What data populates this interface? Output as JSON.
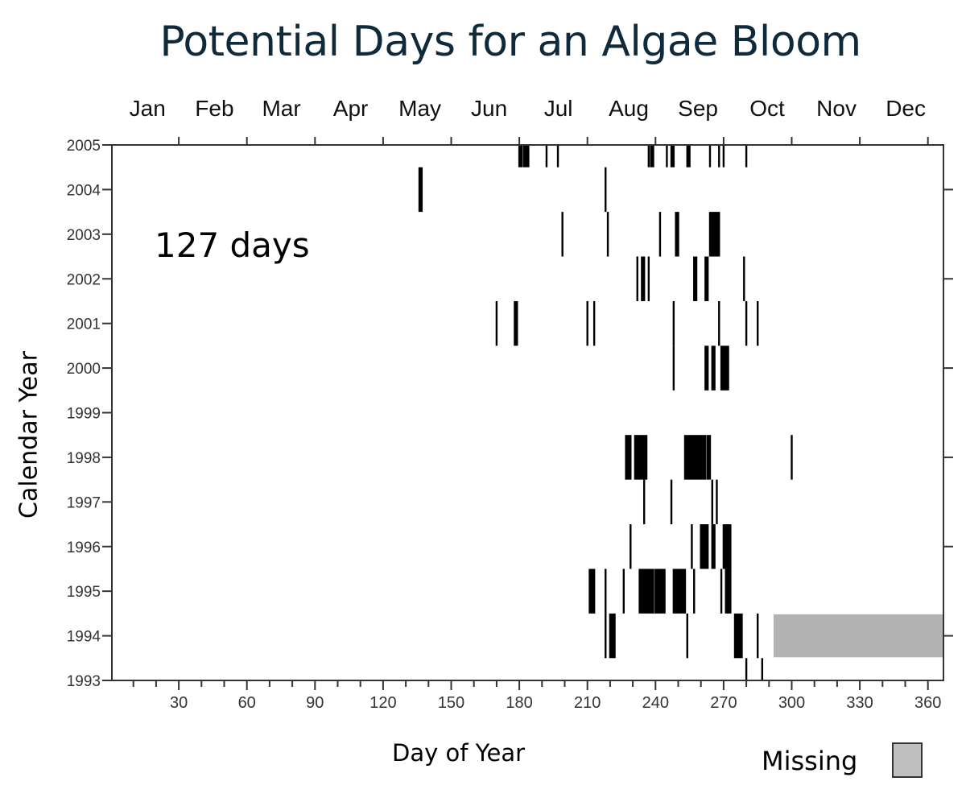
{
  "title": "Potential Days for an Algae Bloom",
  "annotation": "127 days",
  "legend": {
    "label": "Missing",
    "color": "#c0c0c0"
  },
  "chart_data": {
    "type": "event-raster",
    "title": "Potential Days for an Algae Bloom",
    "xlabel": "Day of Year",
    "ylabel": "Calendar Year",
    "xlim": [
      0,
      366
    ],
    "ylim": [
      1993,
      2005
    ],
    "x_ticks": [
      30,
      60,
      90,
      120,
      150,
      180,
      210,
      240,
      270,
      300,
      330,
      360
    ],
    "x_minor_step": 10,
    "month_labels": [
      "Jan",
      "Feb",
      "Mar",
      "Apr",
      "May",
      "Jun",
      "Jul",
      "Aug",
      "Sep",
      "Oct",
      "Nov",
      "Dec"
    ],
    "y_ticks": [
      2005,
      2004,
      2003,
      2002,
      2001,
      2000,
      1999,
      1998,
      1997,
      1996,
      1995,
      1994,
      1993
    ],
    "annotation": "127 days",
    "grid": false,
    "legend": [
      {
        "label": "Missing",
        "color": "#c0c0c0"
      }
    ],
    "bloom_days": [
      {
        "year": 2005,
        "ranges": [
          [
            180,
            181
          ],
          [
            182,
            184
          ],
          [
            192,
            192
          ],
          [
            197,
            197
          ],
          [
            237,
            237
          ],
          [
            238,
            239
          ],
          [
            245,
            245
          ],
          [
            247,
            248
          ],
          [
            254,
            255
          ],
          [
            264,
            264
          ],
          [
            268,
            268
          ],
          [
            270,
            270
          ],
          [
            280,
            280
          ]
        ]
      },
      {
        "year": 2004,
        "ranges": [
          [
            136,
            137
          ],
          [
            218,
            218
          ]
        ]
      },
      {
        "year": 2003,
        "ranges": [
          [
            199,
            199
          ],
          [
            219,
            219
          ],
          [
            242,
            242
          ],
          [
            249,
            250
          ],
          [
            264,
            268
          ]
        ]
      },
      {
        "year": 2002,
        "ranges": [
          [
            232,
            232
          ],
          [
            234,
            235
          ],
          [
            237,
            237
          ],
          [
            257,
            258
          ],
          [
            262,
            263
          ],
          [
            279,
            279
          ]
        ]
      },
      {
        "year": 2001,
        "ranges": [
          [
            170,
            170
          ],
          [
            178,
            179
          ],
          [
            210,
            210
          ],
          [
            213,
            213
          ],
          [
            248,
            248
          ],
          [
            268,
            268
          ],
          [
            280,
            280
          ],
          [
            285,
            285
          ]
        ]
      },
      {
        "year": 2000,
        "ranges": [
          [
            248,
            248
          ],
          [
            262,
            263
          ],
          [
            265,
            266
          ],
          [
            269,
            272
          ]
        ]
      },
      {
        "year": 1999,
        "ranges": []
      },
      {
        "year": 1998,
        "ranges": [
          [
            227,
            229
          ],
          [
            231,
            236
          ],
          [
            253,
            262
          ],
          [
            263,
            264
          ],
          [
            300,
            300
          ]
        ]
      },
      {
        "year": 1997,
        "ranges": [
          [
            235,
            235
          ],
          [
            247,
            247
          ],
          [
            265,
            265
          ],
          [
            267,
            267
          ]
        ]
      },
      {
        "year": 1996,
        "ranges": [
          [
            229,
            229
          ],
          [
            256,
            256
          ],
          [
            260,
            263
          ],
          [
            265,
            266
          ],
          [
            270,
            273
          ]
        ]
      },
      {
        "year": 1995,
        "ranges": [
          [
            211,
            213
          ],
          [
            218,
            218
          ],
          [
            226,
            226
          ],
          [
            233,
            239
          ],
          [
            240,
            244
          ],
          [
            248,
            253
          ],
          [
            257,
            257
          ],
          [
            269,
            269
          ],
          [
            271,
            273
          ]
        ]
      },
      {
        "year": 1994,
        "ranges": [
          [
            218,
            218
          ],
          [
            220,
            222
          ],
          [
            254,
            254
          ],
          [
            275,
            278
          ],
          [
            285,
            285
          ]
        ]
      },
      {
        "year": 1993,
        "ranges": [
          [
            280,
            280
          ],
          [
            287,
            287
          ]
        ]
      }
    ],
    "missing": [
      {
        "year": 1994,
        "start_day": 292,
        "end_day": 366
      }
    ]
  }
}
